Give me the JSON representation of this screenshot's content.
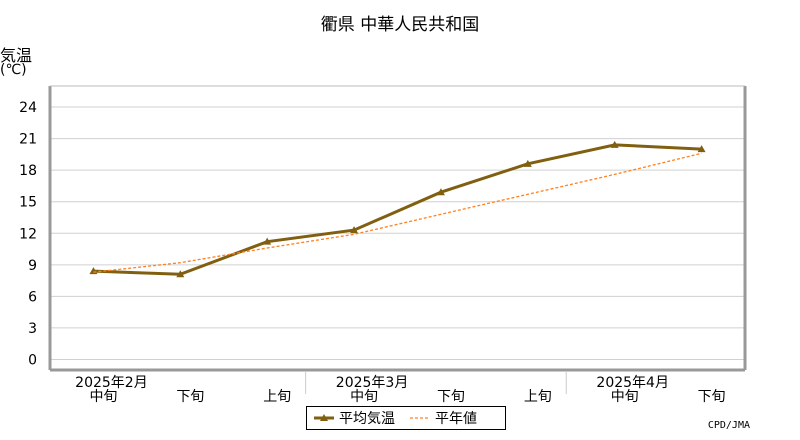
{
  "chart_data": {
    "type": "line",
    "title": "衢県 中華人民共和国",
    "ylabel": "気温",
    "yunit": "(℃)",
    "ylim": [
      -1,
      26
    ],
    "yticks": [
      0,
      3,
      6,
      9,
      12,
      15,
      18,
      21,
      24
    ],
    "grid": true,
    "categories": [
      "中旬",
      "下旬",
      "上旬",
      "中旬",
      "下旬",
      "上旬",
      "中旬",
      "下旬"
    ],
    "month_labels": [
      {
        "label": "2025年2月",
        "index": 0
      },
      {
        "label": "2025年3月",
        "index": 3
      },
      {
        "label": "2025年4月",
        "index": 6
      }
    ],
    "series": [
      {
        "name": "平均気温",
        "color": "#806010",
        "style": "solid-marker",
        "values": [
          8.4,
          8.1,
          11.2,
          12.3,
          15.9,
          18.6,
          20.4,
          20.0
        ]
      },
      {
        "name": "平年値",
        "color": "#ff8020",
        "style": "dashed",
        "values": [
          8.3,
          9.2,
          10.6,
          11.9,
          13.8,
          15.7,
          17.6,
          19.6
        ]
      }
    ],
    "legend_position": "bottom"
  },
  "credit": "CPD/JMA"
}
